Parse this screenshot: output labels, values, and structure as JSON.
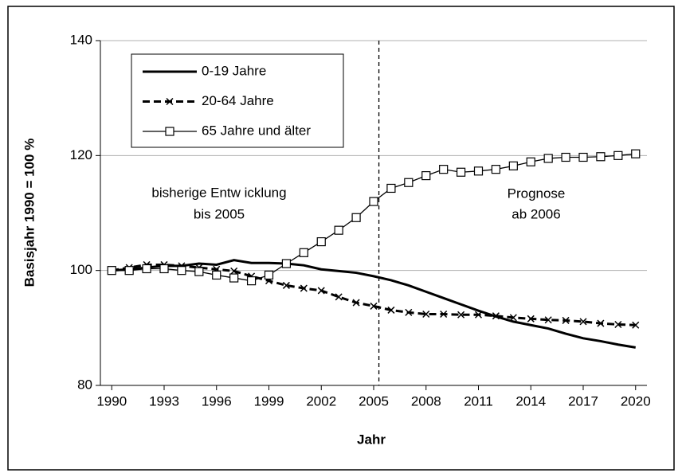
{
  "chart_data": {
    "type": "line",
    "y_label": "Basisjahr 1990 = 100 %",
    "x_label": "Jahr",
    "annotations": [
      "bisherige Entw icklung",
      "bis 2005",
      "Prognose",
      "ab 2006"
    ],
    "vline_x": 2005.3,
    "x": [
      1990,
      1991,
      1992,
      1993,
      1994,
      1995,
      1996,
      1997,
      1998,
      1999,
      2000,
      2001,
      2002,
      2003,
      2004,
      2005,
      2006,
      2007,
      2008,
      2009,
      2010,
      2011,
      2012,
      2013,
      2014,
      2015,
      2016,
      2017,
      2018,
      2019,
      2020
    ],
    "series": [
      {
        "name": "0-19 Jahre",
        "color": "#000000",
        "dash": "solid",
        "marker": "none",
        "values": [
          100,
          100.2,
          100.5,
          100.8,
          100.8,
          101.2,
          101.0,
          101.8,
          101.3,
          101.3,
          101.2,
          100.9,
          100.2,
          99.9,
          99.6,
          99.0,
          98.3,
          97.4,
          96.3,
          95.2,
          94.1,
          93.0,
          92.0,
          91.1,
          90.5,
          89.9,
          89.0,
          88.2,
          87.7,
          87.1,
          86.6
        ]
      },
      {
        "name": "20-64 Jahre",
        "color": "#000000",
        "dash": "dashed",
        "marker": "x",
        "values": [
          100,
          100.5,
          101.0,
          101.0,
          100.8,
          100.5,
          100.2,
          99.9,
          99.0,
          98.2,
          97.4,
          96.9,
          96.5,
          95.4,
          94.4,
          93.8,
          93.1,
          92.7,
          92.4,
          92.4,
          92.3,
          92.3,
          92.1,
          91.8,
          91.6,
          91.4,
          91.3,
          91.1,
          90.8,
          90.6,
          90.5
        ]
      },
      {
        "name": "65 Jahre und älter",
        "color": "#000000",
        "dash": "solid",
        "marker": "square",
        "values": [
          100,
          100.0,
          100.3,
          100.3,
          100.0,
          99.8,
          99.2,
          98.7,
          98.2,
          99.2,
          101.2,
          103.1,
          105.0,
          107.0,
          109.2,
          112.0,
          114.3,
          115.3,
          116.5,
          117.6,
          117.1,
          117.3,
          117.6,
          118.2,
          118.9,
          119.5,
          119.7,
          119.7,
          119.8,
          120.0,
          120.3
        ]
      }
    ],
    "xlim": [
      1989.35,
      2020.65
    ],
    "xticks": [
      1990,
      1993,
      1996,
      1999,
      2002,
      2005,
      2008,
      2011,
      2014,
      2017,
      2020
    ],
    "ylim": [
      80,
      140
    ],
    "yticks": [
      80,
      100,
      120,
      140
    ],
    "grid": true,
    "legend": "top-left"
  }
}
